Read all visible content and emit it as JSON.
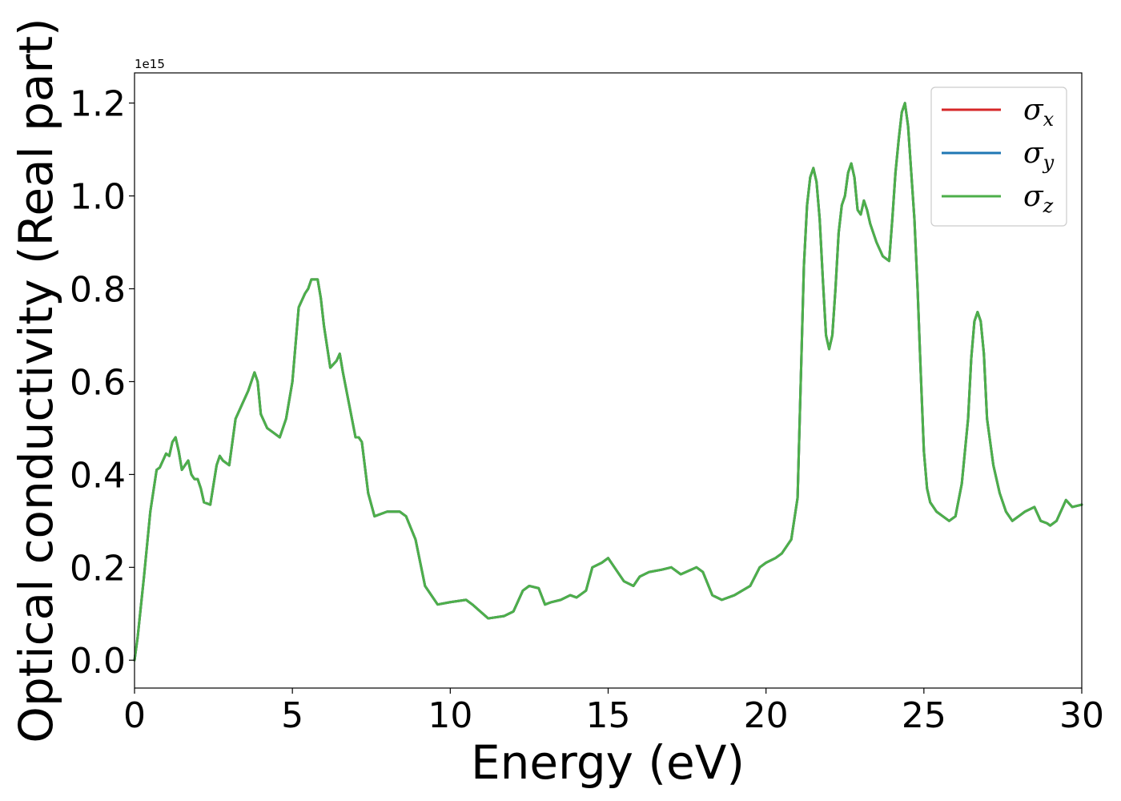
{
  "chart_data": {
    "type": "line",
    "title": "",
    "xlabel": "Energy (eV)",
    "ylabel": "Optical conductivity (Real part)",
    "y_offset_label": "1e15",
    "xlim": [
      0,
      30
    ],
    "ylim": [
      -0.06,
      1.265
    ],
    "x_ticks": [
      0,
      5,
      10,
      15,
      20,
      25,
      30
    ],
    "x_tick_labels": [
      "0",
      "5",
      "10",
      "15",
      "20",
      "25",
      "30"
    ],
    "y_ticks": [
      0.0,
      0.2,
      0.4,
      0.6,
      0.8,
      1.0,
      1.2
    ],
    "y_tick_labels": [
      "0.0",
      "0.2",
      "0.4",
      "0.6",
      "0.8",
      "1.0",
      "1.2"
    ],
    "grid": false,
    "legend_position": "top-right",
    "x": [
      0.0,
      0.1,
      0.3,
      0.5,
      0.7,
      0.8,
      0.9,
      1.0,
      1.1,
      1.2,
      1.3,
      1.4,
      1.5,
      1.6,
      1.7,
      1.8,
      1.9,
      2.0,
      2.1,
      2.2,
      2.4,
      2.6,
      2.7,
      2.8,
      3.0,
      3.2,
      3.4,
      3.6,
      3.8,
      3.9,
      4.0,
      4.2,
      4.4,
      4.6,
      4.8,
      5.0,
      5.2,
      5.4,
      5.5,
      5.6,
      5.8,
      5.9,
      6.0,
      6.2,
      6.4,
      6.5,
      6.6,
      6.8,
      7.0,
      7.1,
      7.2,
      7.4,
      7.6,
      8.0,
      8.4,
      8.6,
      8.9,
      9.2,
      9.6,
      10.0,
      10.5,
      10.7,
      11.2,
      11.7,
      12.0,
      12.3,
      12.5,
      12.8,
      13.0,
      13.2,
      13.5,
      13.8,
      14.0,
      14.3,
      14.5,
      14.8,
      15.0,
      15.2,
      15.5,
      15.8,
      16.0,
      16.3,
      16.7,
      17.0,
      17.3,
      17.8,
      18.0,
      18.3,
      18.6,
      19.0,
      19.5,
      19.8,
      20.0,
      20.3,
      20.5,
      20.8,
      21.0,
      21.1,
      21.2,
      21.3,
      21.4,
      21.5,
      21.6,
      21.7,
      21.8,
      21.9,
      22.0,
      22.1,
      22.2,
      22.3,
      22.4,
      22.5,
      22.6,
      22.7,
      22.8,
      22.9,
      23.0,
      23.1,
      23.2,
      23.3,
      23.5,
      23.7,
      23.9,
      24.0,
      24.1,
      24.2,
      24.3,
      24.4,
      24.5,
      24.6,
      24.7,
      24.8,
      24.9,
      25.0,
      25.1,
      25.2,
      25.4,
      25.6,
      25.8,
      26.0,
      26.2,
      26.4,
      26.5,
      26.6,
      26.7,
      26.8,
      26.9,
      27.0,
      27.2,
      27.4,
      27.6,
      27.8,
      28.0,
      28.2,
      28.5,
      28.7,
      28.9,
      29.0,
      29.2,
      29.5,
      29.7,
      30.0
    ],
    "y": [
      0.0,
      0.05,
      0.18,
      0.32,
      0.41,
      0.415,
      0.43,
      0.445,
      0.44,
      0.47,
      0.48,
      0.45,
      0.41,
      0.42,
      0.43,
      0.4,
      0.39,
      0.39,
      0.37,
      0.34,
      0.335,
      0.42,
      0.44,
      0.43,
      0.42,
      0.52,
      0.55,
      0.58,
      0.62,
      0.6,
      0.53,
      0.5,
      0.49,
      0.48,
      0.52,
      0.6,
      0.76,
      0.79,
      0.8,
      0.82,
      0.82,
      0.78,
      0.72,
      0.63,
      0.645,
      0.66,
      0.62,
      0.55,
      0.48,
      0.48,
      0.47,
      0.36,
      0.31,
      0.32,
      0.32,
      0.31,
      0.26,
      0.16,
      0.12,
      0.125,
      0.13,
      0.12,
      0.09,
      0.095,
      0.105,
      0.15,
      0.16,
      0.155,
      0.12,
      0.125,
      0.13,
      0.14,
      0.135,
      0.15,
      0.2,
      0.21,
      0.22,
      0.2,
      0.17,
      0.16,
      0.18,
      0.19,
      0.195,
      0.2,
      0.185,
      0.2,
      0.19,
      0.14,
      0.13,
      0.14,
      0.16,
      0.2,
      0.21,
      0.22,
      0.23,
      0.26,
      0.35,
      0.6,
      0.85,
      0.98,
      1.04,
      1.06,
      1.03,
      0.95,
      0.82,
      0.7,
      0.67,
      0.7,
      0.8,
      0.92,
      0.98,
      1.0,
      1.05,
      1.07,
      1.04,
      0.97,
      0.96,
      0.99,
      0.97,
      0.94,
      0.9,
      0.87,
      0.86,
      0.95,
      1.05,
      1.12,
      1.18,
      1.2,
      1.15,
      1.05,
      0.95,
      0.8,
      0.62,
      0.45,
      0.37,
      0.34,
      0.32,
      0.31,
      0.3,
      0.31,
      0.38,
      0.52,
      0.65,
      0.73,
      0.75,
      0.73,
      0.66,
      0.52,
      0.42,
      0.36,
      0.32,
      0.3,
      0.31,
      0.32,
      0.33,
      0.3,
      0.295,
      0.29,
      0.3,
      0.345,
      0.33,
      0.335
    ],
    "series": [
      {
        "name": "σx",
        "sym": "σ",
        "sub": "x",
        "color": "#d62728"
      },
      {
        "name": "σy",
        "sym": "σ",
        "sub": "y",
        "color": "#1f77b4"
      },
      {
        "name": "σz",
        "sym": "σ",
        "sub": "z",
        "color": "#4daf4a"
      }
    ]
  }
}
